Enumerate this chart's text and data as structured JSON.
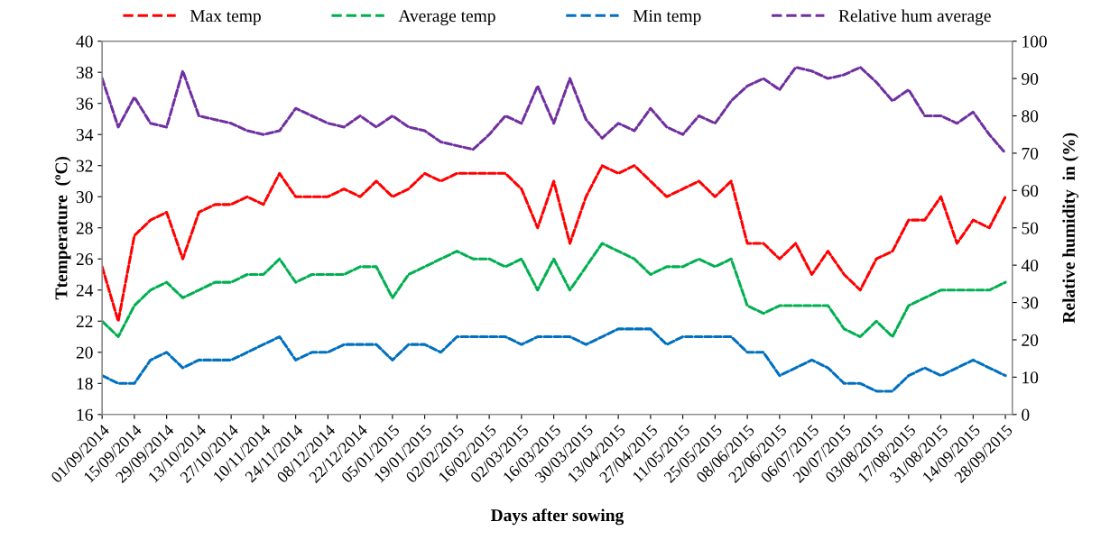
{
  "chart_data": {
    "type": "line",
    "xlabel": "Days after sowing",
    "ylabel": "Ttemperature  (ºC)",
    "y2label": "Relative humidity  in (%)",
    "x": [
      "2014-09-01",
      "2014-09-08",
      "2014-09-15",
      "2014-09-22",
      "2014-09-29",
      "2014-10-06",
      "2014-10-13",
      "2014-10-20",
      "2014-10-27",
      "2014-11-03",
      "2014-11-10",
      "2014-11-17",
      "2014-11-24",
      "2014-12-01",
      "2014-12-08",
      "2014-12-15",
      "2014-12-22",
      "2014-12-29",
      "2015-01-05",
      "2015-01-12",
      "2015-01-19",
      "2015-01-26",
      "2015-02-02",
      "2015-02-09",
      "2015-02-16",
      "2015-02-23",
      "2015-03-02",
      "2015-03-09",
      "2015-03-16",
      "2015-03-23",
      "2015-03-30",
      "2015-04-06",
      "2015-04-13",
      "2015-04-20",
      "2015-04-27",
      "2015-05-04",
      "2015-05-11",
      "2015-05-18",
      "2015-05-25",
      "2015-06-01",
      "2015-06-08",
      "2015-06-15",
      "2015-06-22",
      "2015-06-29",
      "2015-07-06",
      "2015-07-13",
      "2015-07-20",
      "2015-07-27",
      "2015-08-03",
      "2015-08-10",
      "2015-08-17",
      "2015-08-24",
      "2015-08-31",
      "2015-09-07",
      "2015-09-14",
      "2015-09-21",
      "2015-09-28"
    ],
    "series": [
      {
        "name": "Max temp",
        "color": "#ff0000",
        "values": [
          25.5,
          22,
          27.5,
          28.5,
          29,
          26,
          29,
          29.5,
          29.5,
          30,
          29.5,
          31.5,
          30,
          30,
          30,
          30.5,
          30,
          31,
          30,
          30.5,
          31.5,
          31,
          31.5,
          31.5,
          31.5,
          31.5,
          30.5,
          28,
          31,
          27,
          30,
          32,
          31.5,
          32,
          31,
          30,
          30.5,
          31,
          30,
          31,
          27,
          27,
          26,
          27,
          25,
          26.5,
          25,
          24,
          26,
          26.5,
          28.5,
          28.5,
          30,
          27,
          28.5,
          28,
          30
        ]
      },
      {
        "name": "Average temp",
        "color": "#00b050",
        "values": [
          22,
          21,
          23,
          24,
          24.5,
          23.5,
          24,
          24.5,
          24.5,
          25,
          25,
          26,
          24.5,
          25,
          25,
          25,
          25.5,
          25.5,
          23.5,
          25,
          25.5,
          26,
          26.5,
          26,
          26,
          25.5,
          26,
          24,
          26,
          24,
          25.5,
          27,
          26.5,
          26,
          25,
          25.5,
          25.5,
          26,
          25.5,
          26,
          23,
          22.5,
          23,
          23,
          23,
          23,
          21.5,
          21,
          22,
          21,
          23,
          23.5,
          24,
          24,
          24,
          24,
          24.5
        ]
      },
      {
        "name": "Min temp",
        "color": "#0070c0",
        "values": [
          18.5,
          18,
          18,
          19.5,
          20,
          19,
          19.5,
          19.5,
          19.5,
          20,
          20.5,
          21,
          19.5,
          20,
          20,
          20.5,
          20.5,
          20.5,
          19.5,
          20.5,
          20.5,
          20,
          21,
          21,
          21,
          21,
          20.5,
          21,
          21,
          21,
          20.5,
          21,
          21.5,
          21.5,
          21.5,
          20.5,
          21,
          21,
          21,
          21,
          20,
          20,
          18.5,
          19,
          19.5,
          19,
          18,
          18,
          17.5,
          17.5,
          18.5,
          19,
          18.5,
          19,
          19.5,
          19,
          18.5
        ]
      },
      {
        "name": "Relative hum average",
        "color": "#7030a0",
        "axis": "y2",
        "values": [
          90,
          77,
          85,
          78,
          77,
          92,
          80,
          79,
          78,
          76,
          75,
          76,
          82,
          80,
          78,
          77,
          80,
          77,
          80,
          77,
          76,
          73,
          72,
          71,
          75,
          80,
          78,
          88,
          78,
          90,
          79,
          74,
          78,
          76,
          82,
          77,
          75,
          80,
          78,
          84,
          88,
          90,
          87,
          93,
          92,
          90,
          91,
          93,
          89,
          84,
          87,
          80,
          80,
          78,
          81,
          75,
          70
        ]
      }
    ],
    "xlim": [
      "2014-09-01",
      "2015-10-01"
    ],
    "xticks": [
      {
        "value": "2014-09-01",
        "label": "01/09/2014"
      },
      {
        "value": "2014-09-15",
        "label": "15/09/2014"
      },
      {
        "value": "2014-09-29",
        "label": "29/09/2014"
      },
      {
        "value": "2014-10-13",
        "label": "13/10/2014"
      },
      {
        "value": "2014-10-27",
        "label": "27/10/2014"
      },
      {
        "value": "2014-11-10",
        "label": "10/11/2014"
      },
      {
        "value": "2014-11-24",
        "label": "24/11/2014"
      },
      {
        "value": "2014-12-08",
        "label": "08/12/2014"
      },
      {
        "value": "2014-12-22",
        "label": "22/12/2014"
      },
      {
        "value": "2015-01-05",
        "label": "05/01/2015"
      },
      {
        "value": "2015-01-19",
        "label": "19/01/2015"
      },
      {
        "value": "2015-02-02",
        "label": "02/02/2015"
      },
      {
        "value": "2015-02-16",
        "label": "16/02/2015"
      },
      {
        "value": "2015-03-02",
        "label": "02/03/2015"
      },
      {
        "value": "2015-03-16",
        "label": "16/03/2015"
      },
      {
        "value": "2015-03-30",
        "label": "30/03/2015"
      },
      {
        "value": "2015-04-13",
        "label": "13/04/2015"
      },
      {
        "value": "2015-04-27",
        "label": "27/04/2015"
      },
      {
        "value": "2015-05-11",
        "label": "11/05/2015"
      },
      {
        "value": "2015-05-25",
        "label": "25/05/2015"
      },
      {
        "value": "2015-06-08",
        "label": "08/06/2015"
      },
      {
        "value": "2015-06-22",
        "label": "22/06/2015"
      },
      {
        "value": "2015-07-06",
        "label": "06/07/2015"
      },
      {
        "value": "2015-07-20",
        "label": "20/07/2015"
      },
      {
        "value": "2015-08-03",
        "label": "03/08/2015"
      },
      {
        "value": "2015-08-17",
        "label": "17/08/2015"
      },
      {
        "value": "2015-08-31",
        "label": "31/08/2015"
      },
      {
        "value": "2015-09-14",
        "label": "14/09/2015"
      },
      {
        "value": "2015-09-28",
        "label": "28/09/2015"
      }
    ],
    "ylim": [
      16,
      40
    ],
    "yticks": [
      16,
      18,
      20,
      22,
      24,
      26,
      28,
      30,
      32,
      34,
      36,
      38,
      40
    ],
    "y2lim": [
      0,
      100
    ],
    "y2ticks": [
      0,
      10,
      20,
      30,
      40,
      50,
      60,
      70,
      80,
      90,
      100
    ],
    "legend": "top",
    "line_style": "dashed",
    "grid": false
  }
}
